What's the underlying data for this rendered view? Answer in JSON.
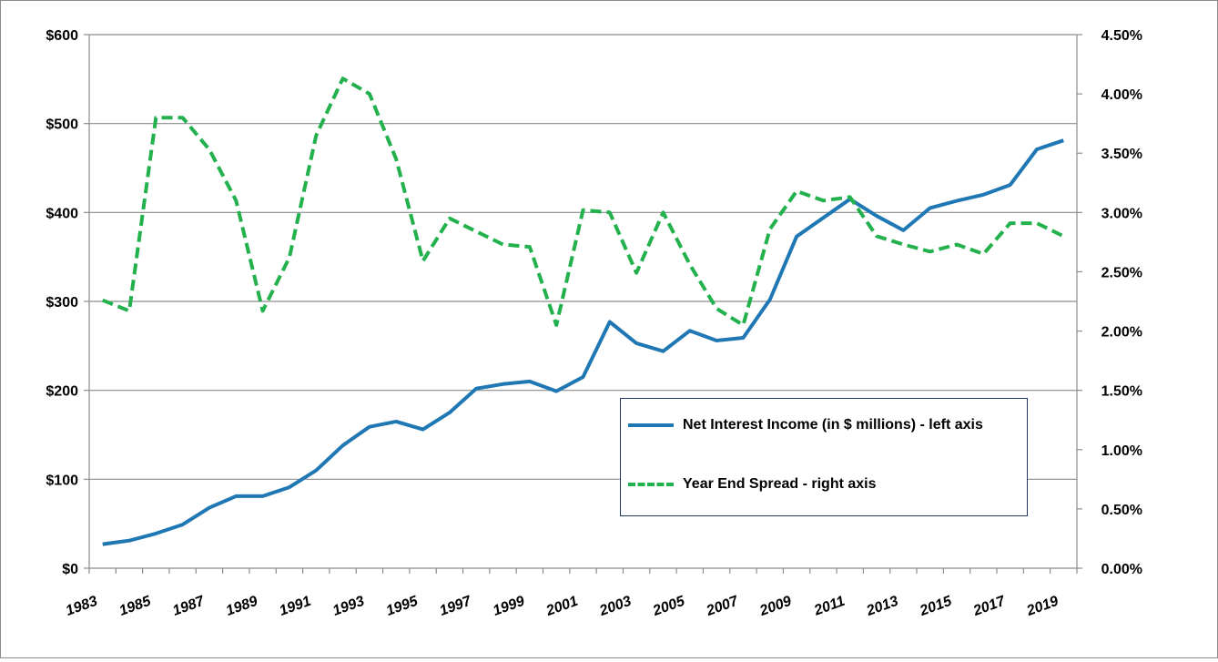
{
  "chart_data": {
    "type": "line",
    "x": [
      1983,
      1984,
      1985,
      1986,
      1987,
      1988,
      1989,
      1990,
      1991,
      1992,
      1993,
      1994,
      1995,
      1996,
      1997,
      1998,
      1999,
      2000,
      2001,
      2002,
      2003,
      2004,
      2005,
      2006,
      2007,
      2008,
      2009,
      2010,
      2011,
      2012,
      2013,
      2014,
      2015,
      2016,
      2017,
      2018,
      2019
    ],
    "x_tick_labels": [
      "1983",
      "1985",
      "1987",
      "1989",
      "1991",
      "1993",
      "1995",
      "1997",
      "1999",
      "2001",
      "2003",
      "2005",
      "2007",
      "2009",
      "2011",
      "2013",
      "2015",
      "2017",
      "2019"
    ],
    "series": [
      {
        "name": "Net Interest Income (in $ millions) - left axis",
        "axis": "left",
        "color": "#1f77b4",
        "style": "solid",
        "values": [
          27,
          31,
          39,
          49,
          68,
          81,
          81,
          91,
          110,
          138,
          159,
          165,
          156,
          175,
          202,
          207,
          210,
          199,
          215,
          277,
          253,
          244,
          267,
          256,
          259,
          302,
          373,
          394,
          415,
          396,
          380,
          405,
          413,
          420,
          431,
          471,
          481
        ]
      },
      {
        "name": "Year End Spread - right axis",
        "axis": "right",
        "color": "#22b14c",
        "style": "dashed",
        "values": [
          2.26,
          2.17,
          3.8,
          3.8,
          3.53,
          3.1,
          2.17,
          2.62,
          3.65,
          4.13,
          4.0,
          3.45,
          2.59,
          2.95,
          2.84,
          2.73,
          2.71,
          2.05,
          3.02,
          3.0,
          2.49,
          3.0,
          2.56,
          2.19,
          2.05,
          2.86,
          3.18,
          3.1,
          3.13,
          2.8,
          2.73,
          2.67,
          2.73,
          2.65,
          2.91,
          2.91,
          2.8
        ]
      }
    ],
    "y_left": {
      "min": 0,
      "max": 600,
      "ticks": [
        0,
        100,
        200,
        300,
        400,
        500,
        600
      ],
      "tick_labels": [
        "$0",
        "$100",
        "$200",
        "$300",
        "$400",
        "$500",
        "$600"
      ]
    },
    "y_right": {
      "min": 0,
      "max": 4.5,
      "ticks": [
        0,
        0.5,
        1,
        1.5,
        2,
        2.5,
        3,
        3.5,
        4,
        4.5
      ],
      "tick_labels": [
        "0.00%",
        "0.50%",
        "1.00%",
        "1.50%",
        "2.00%",
        "2.50%",
        "3.00%",
        "3.50%",
        "4.00%",
        "4.50%"
      ]
    },
    "grid": true,
    "legend_position": "inside-lower-right",
    "title": "",
    "xlabel": "",
    "ylabel": ""
  }
}
